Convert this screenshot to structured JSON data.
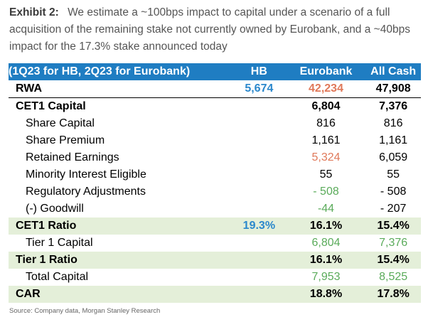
{
  "caption": {
    "exhibit_label": "Exhibit 2:",
    "text": "We estimate a ~100bps impact to capital under a scenario of a full acquisition of the remaining stake not currently owned by Eurobank, and a ~40bps impact for the 17.3% stake announced today"
  },
  "table": {
    "header": {
      "label": "(1Q23 for HB, 2Q23 for Eurobank)",
      "hb": "HB",
      "eurobank": "Eurobank",
      "all_cash": "All Cash"
    },
    "rows": [
      {
        "label": "RWA",
        "hb": "5,674",
        "eurobank": "42,234",
        "all_cash": "47,908"
      },
      {
        "label": "CET1 Capital",
        "hb": "",
        "eurobank": "6,804",
        "all_cash": "7,376"
      },
      {
        "label": "Share Capital",
        "hb": "",
        "eurobank": "816",
        "all_cash": "816"
      },
      {
        "label": "Share Premium",
        "hb": "",
        "eurobank": "1,161",
        "all_cash": "1,161"
      },
      {
        "label": "Retained Earnings",
        "hb": "",
        "eurobank": "5,324",
        "all_cash": "6,059"
      },
      {
        "label": "Minority Interest Eligible",
        "hb": "",
        "eurobank": "55",
        "all_cash": "55"
      },
      {
        "label": "Regulatory Adjustments",
        "hb": "",
        "eurobank": "- 508",
        "all_cash": "- 508"
      },
      {
        "label": "(-) Goodwill",
        "hb": "",
        "eurobank": "-44",
        "all_cash": "- 207"
      },
      {
        "label": "CET1 Ratio",
        "hb": "19.3%",
        "eurobank": "16.1%",
        "all_cash": "15.4%"
      },
      {
        "label": "Tier 1 Capital",
        "hb": "",
        "eurobank": "6,804",
        "all_cash": "7,376"
      },
      {
        "label": "Tier 1 Ratio",
        "hb": "",
        "eurobank": "16.1%",
        "all_cash": "15.4%"
      },
      {
        "label": "Total Capital",
        "hb": "",
        "eurobank": "7,953",
        "all_cash": "8,525"
      },
      {
        "label": "CAR",
        "hb": "",
        "eurobank": "18.8%",
        "all_cash": "17.8%"
      }
    ]
  },
  "colors": {
    "header_bg": "#1f7dc2",
    "ratio_row_bg": "#e4efd9",
    "blue_value": "#2b88cc",
    "orange_value": "#e0795a",
    "green_value": "#5aab5a"
  },
  "source": "Source: Company data, Morgan Stanley Research"
}
